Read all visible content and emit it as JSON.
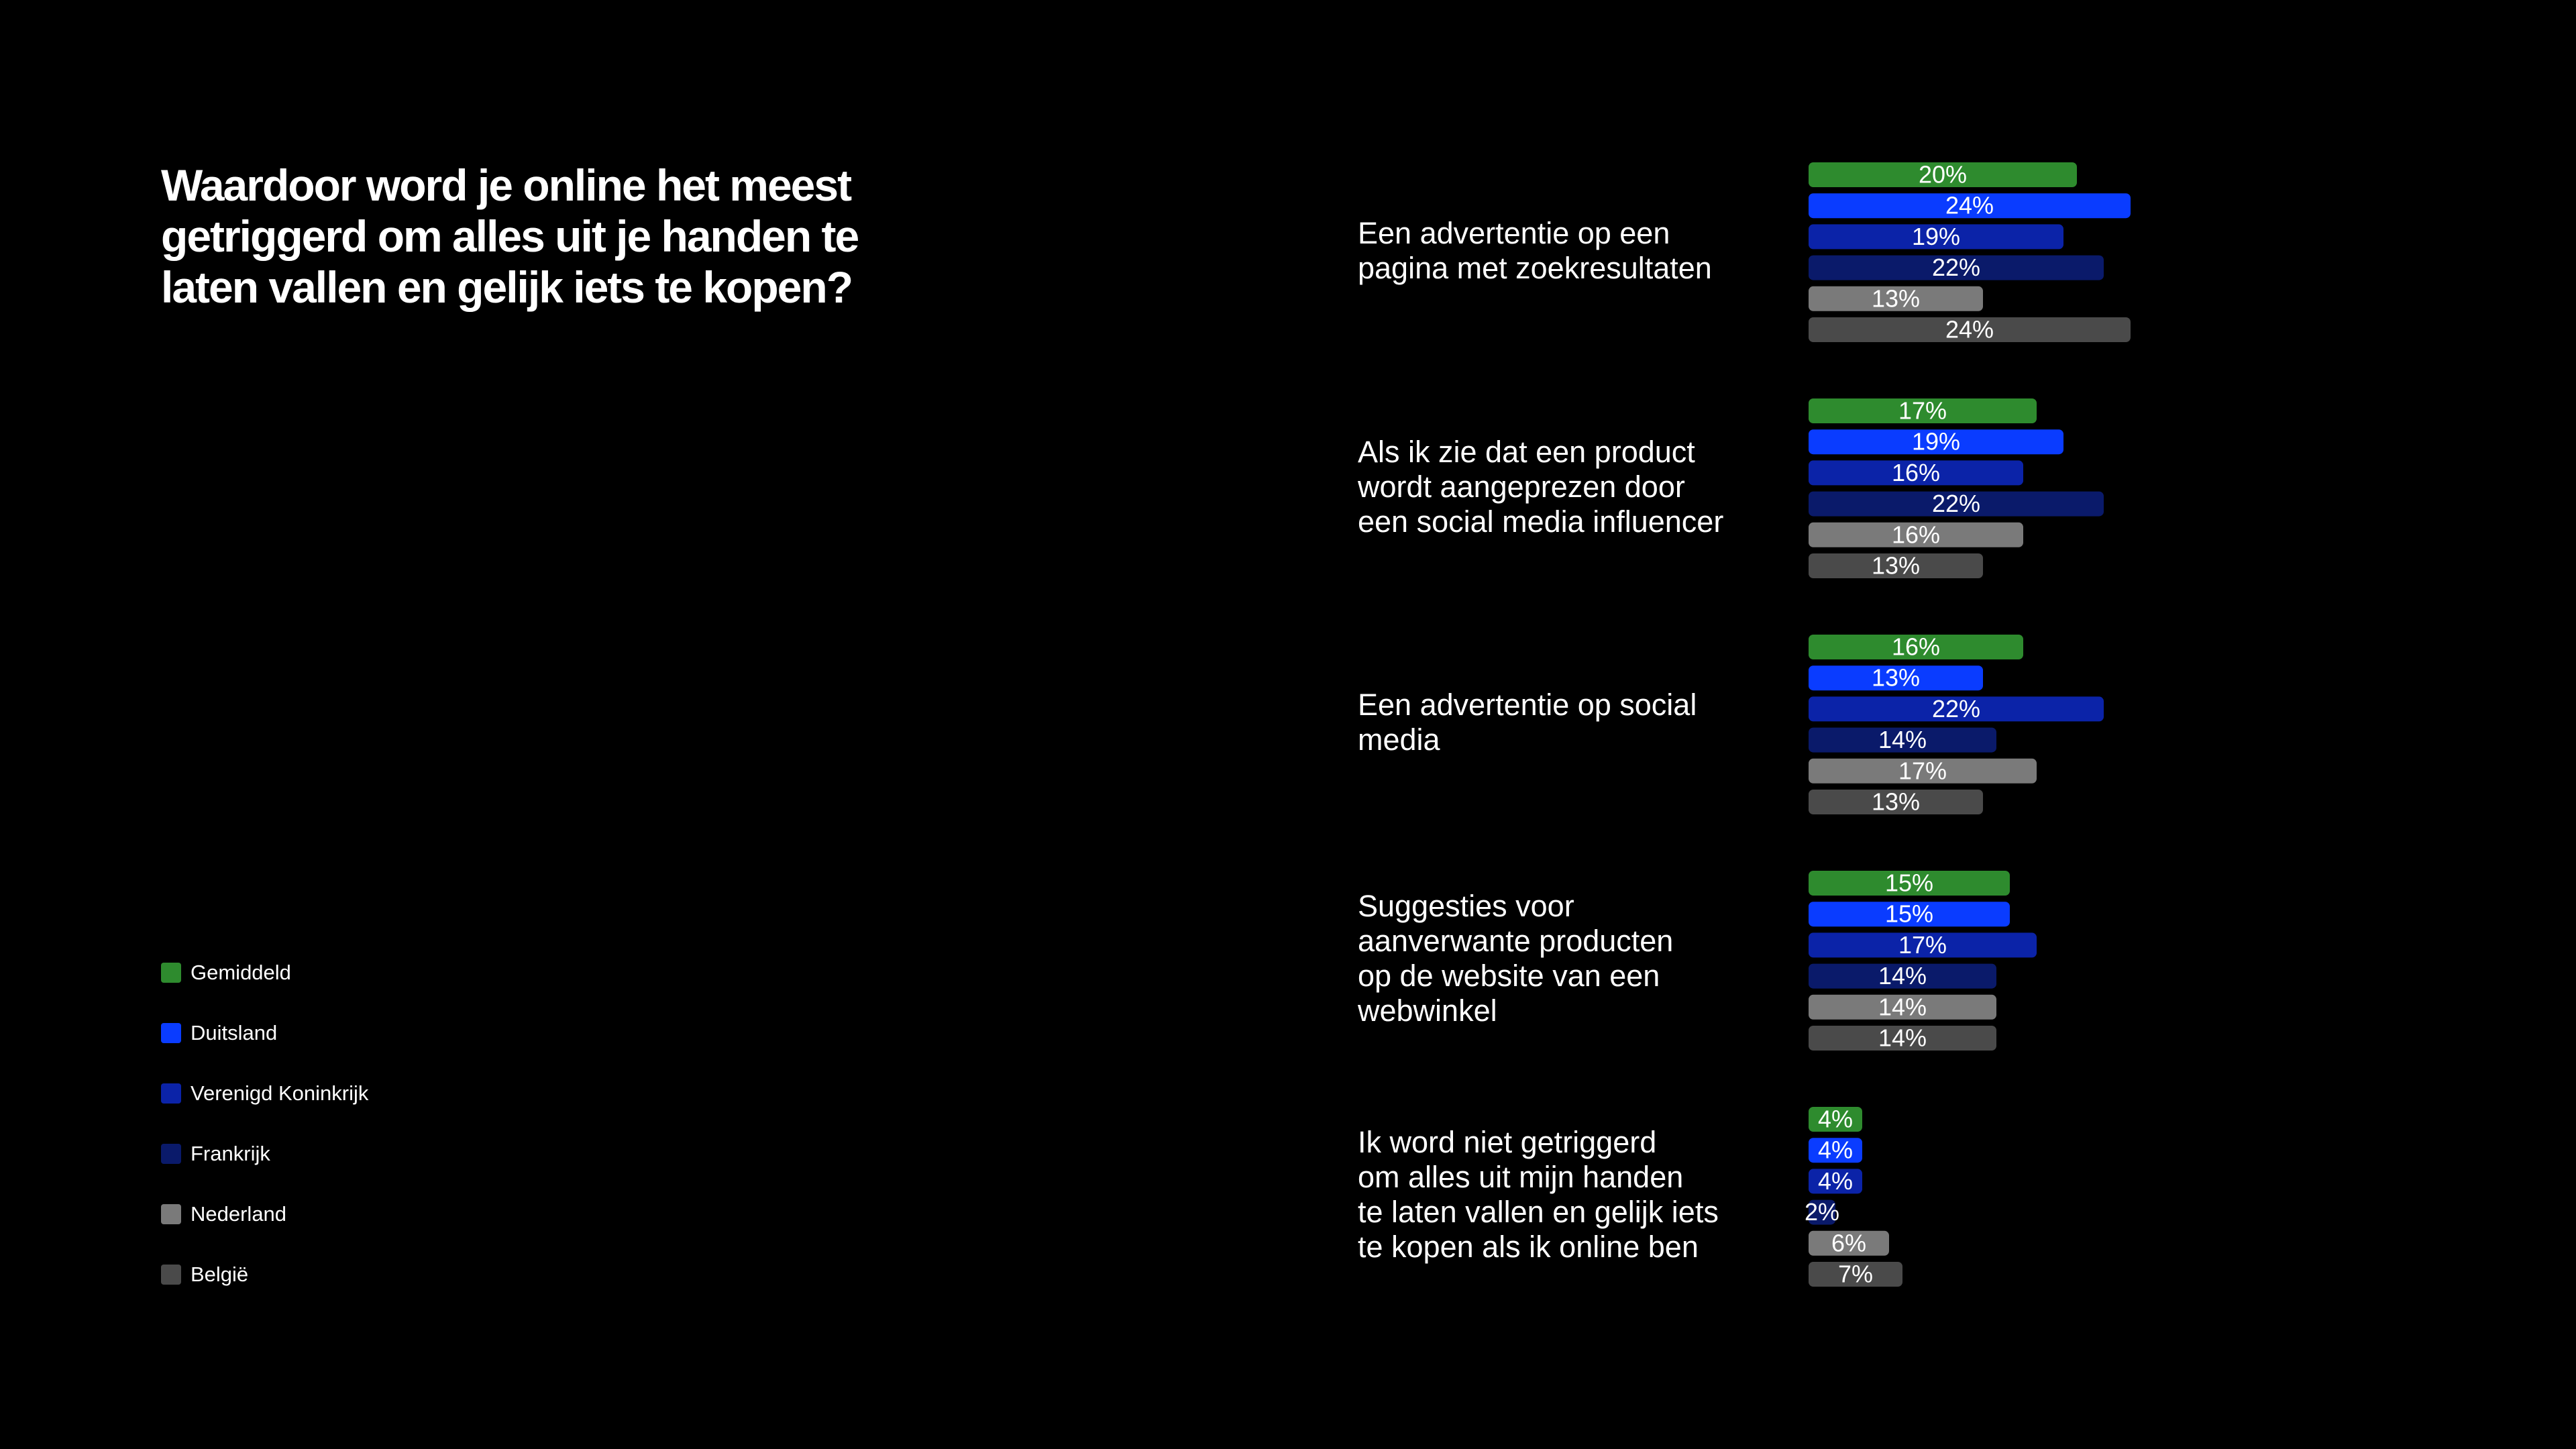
{
  "title_lines": [
    "Waardoor word je online het meest",
    "getriggerd om alles uit je handen te",
    "laten vallen en gelijk iets te kopen?"
  ],
  "legend": [
    {
      "label": "Gemiddeld",
      "color": "#2e8b2e"
    },
    {
      "label": "Duitsland",
      "color": "#0a3cff"
    },
    {
      "label": "Verenigd Koninkrijk",
      "color": "#0b23a8"
    },
    {
      "label": "Frankrijk",
      "color": "#0a1a6a"
    },
    {
      "label": "Nederland",
      "color": "#7a7a7a"
    },
    {
      "label": "België",
      "color": "#4a4a4a"
    }
  ],
  "category_lines": [
    [
      "Een advertentie op een",
      "pagina met zoekresultaten"
    ],
    [
      "Als ik zie dat een product",
      "wordt aangeprezen door",
      "een social media influencer"
    ],
    [
      "Een advertentie op social",
      "media"
    ],
    [
      "Suggesties voor",
      "aanverwante producten",
      "op de website van een",
      "webwinkel"
    ],
    [
      "Ik word niet getriggerd",
      "om alles uit mijn handen",
      "te laten vallen en gelijk iets",
      "te kopen als ik online ben"
    ]
  ],
  "chart_data": {
    "type": "bar",
    "orientation": "horizontal",
    "unit": "%",
    "categories": [
      "Een advertentie op een pagina met zoekresultaten",
      "Als ik zie dat een product wordt aangeprezen door een social media influencer",
      "Een advertentie op social media",
      "Suggesties voor aanverwante producten op de website van een webwinkel",
      "Ik word niet getriggerd om alles uit mijn handen te laten vallen en gelijk iets te kopen als ik online ben"
    ],
    "series": [
      {
        "name": "Gemiddeld",
        "color": "#2e8b2e",
        "values": [
          20,
          17,
          16,
          15,
          4
        ]
      },
      {
        "name": "Duitsland",
        "color": "#0a3cff",
        "values": [
          24,
          19,
          13,
          15,
          4
        ]
      },
      {
        "name": "Verenigd Koninkrijk",
        "color": "#0b23a8",
        "values": [
          19,
          16,
          22,
          17,
          4
        ]
      },
      {
        "name": "Frankrijk",
        "color": "#0a1a6a",
        "values": [
          22,
          22,
          14,
          14,
          2
        ]
      },
      {
        "name": "Nederland",
        "color": "#7a7a7a",
        "values": [
          13,
          16,
          17,
          14,
          6
        ]
      },
      {
        "name": "België",
        "color": "#4a4a4a",
        "values": [
          24,
          13,
          13,
          14,
          7
        ]
      }
    ],
    "legend_position": "bottom-left",
    "grid": false
  }
}
